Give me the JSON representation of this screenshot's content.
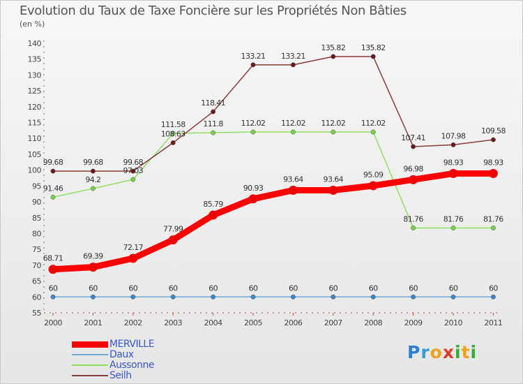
{
  "header": {
    "title": "Evolution du Taux de Taxe Foncière sur les Propriétés Non Bâties",
    "unit": "(en %)"
  },
  "chart_data": {
    "type": "line",
    "categories": [
      "2000",
      "2001",
      "2002",
      "2003",
      "2004",
      "2005",
      "2006",
      "2007",
      "2008",
      "2009",
      "2010",
      "2011"
    ],
    "ylim": [
      55,
      140
    ],
    "yticks": [
      55,
      60,
      65,
      70,
      75,
      80,
      85,
      90,
      95,
      100,
      105,
      110,
      115,
      120,
      125,
      130,
      135,
      140
    ],
    "grid": false,
    "legend_position": "bottom-left",
    "series": [
      {
        "name": "MERVILLE",
        "color": "#ff0000",
        "marker": "#ee0000",
        "values": [
          68.71,
          69.39,
          72.17,
          77.99,
          85.79,
          90.93,
          93.64,
          93.64,
          95.09,
          96.98,
          98.93,
          98.93
        ],
        "labels": [
          "68.71",
          "69.39",
          "72.17",
          "77.99",
          "85.79",
          "90.93",
          "93.64",
          "93.64",
          "95.09",
          "96.98",
          "98.93",
          "98.93"
        ]
      },
      {
        "name": "Daux",
        "color": "#6ea6d4",
        "marker": "#3a85cc",
        "values": [
          60,
          60,
          60,
          60,
          60,
          60,
          60,
          60,
          60,
          60,
          60,
          60
        ],
        "labels": [
          "60",
          "60",
          "60",
          "60",
          "60",
          "60",
          "60",
          "60",
          "60",
          "60",
          "60",
          "60"
        ]
      },
      {
        "name": "Aussonne",
        "color": "#90e060",
        "marker": "#7ad04a",
        "values": [
          91.46,
          94.2,
          97.03,
          111.58,
          111.8,
          112.02,
          112.02,
          112.02,
          112.02,
          81.76,
          81.76,
          81.76
        ],
        "labels": [
          "91.46",
          "94.2",
          "97.03",
          "111.58",
          "111.8",
          "112.02",
          "112.02",
          "112.02",
          "112.02",
          "81.76",
          "81.76",
          "81.76"
        ]
      },
      {
        "name": "Seilh",
        "color": "#8b3a3a",
        "marker": "#6a1a1a",
        "values": [
          99.68,
          99.68,
          99.68,
          108.63,
          118.41,
          133.21,
          133.21,
          135.82,
          135.82,
          107.41,
          107.98,
          109.58
        ],
        "labels": [
          "99.68",
          "99.68",
          "99.68",
          "108.63",
          "118.41",
          "133.21",
          "133.21",
          "135.82",
          "135.82",
          "107.41",
          "107.98",
          "109.58"
        ]
      }
    ]
  },
  "brand": {
    "letters": [
      {
        "ch": "P",
        "color": "#2f7fd0"
      },
      {
        "ch": "r",
        "color": "#2f9fd8"
      },
      {
        "ch": "o",
        "color": "#f0a020"
      },
      {
        "ch": "x",
        "color": "#e03a2a"
      },
      {
        "ch": "i",
        "color": "#3aa83a"
      },
      {
        "ch": "t",
        "color": "#f0a020"
      },
      {
        "ch": "i",
        "color": "#3aa83a"
      }
    ]
  }
}
